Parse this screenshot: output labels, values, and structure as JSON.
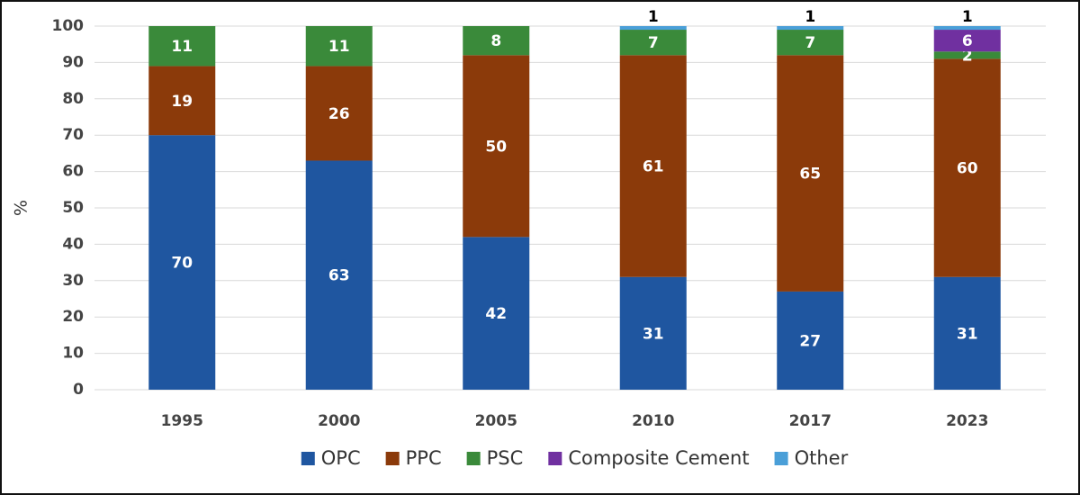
{
  "chart_data": {
    "type": "stacked-bar",
    "y_label": "%",
    "categories": [
      "1995",
      "2000",
      "2005",
      "2010",
      "2017",
      "2023"
    ],
    "series": [
      {
        "name": "OPC",
        "color": "#1f56a0",
        "values": [
          70,
          63,
          42,
          31,
          27,
          31
        ]
      },
      {
        "name": "PPC",
        "color": "#8b3a0a",
        "values": [
          19,
          26,
          50,
          61,
          65,
          60
        ]
      },
      {
        "name": "PSC",
        "color": "#3a8a3a",
        "values": [
          11,
          11,
          8,
          7,
          7,
          2
        ]
      },
      {
        "name": "Composite Cement",
        "color": "#7030a0",
        "values": [
          null,
          null,
          null,
          null,
          null,
          6
        ]
      },
      {
        "name": "Other",
        "color": "#4a9fd8",
        "values": [
          null,
          null,
          null,
          1,
          1,
          1
        ]
      }
    ],
    "ylim": [
      0,
      100
    ],
    "yticks": [
      0,
      10,
      20,
      30,
      40,
      50,
      60,
      70,
      80,
      90,
      100
    ],
    "grid": true
  }
}
